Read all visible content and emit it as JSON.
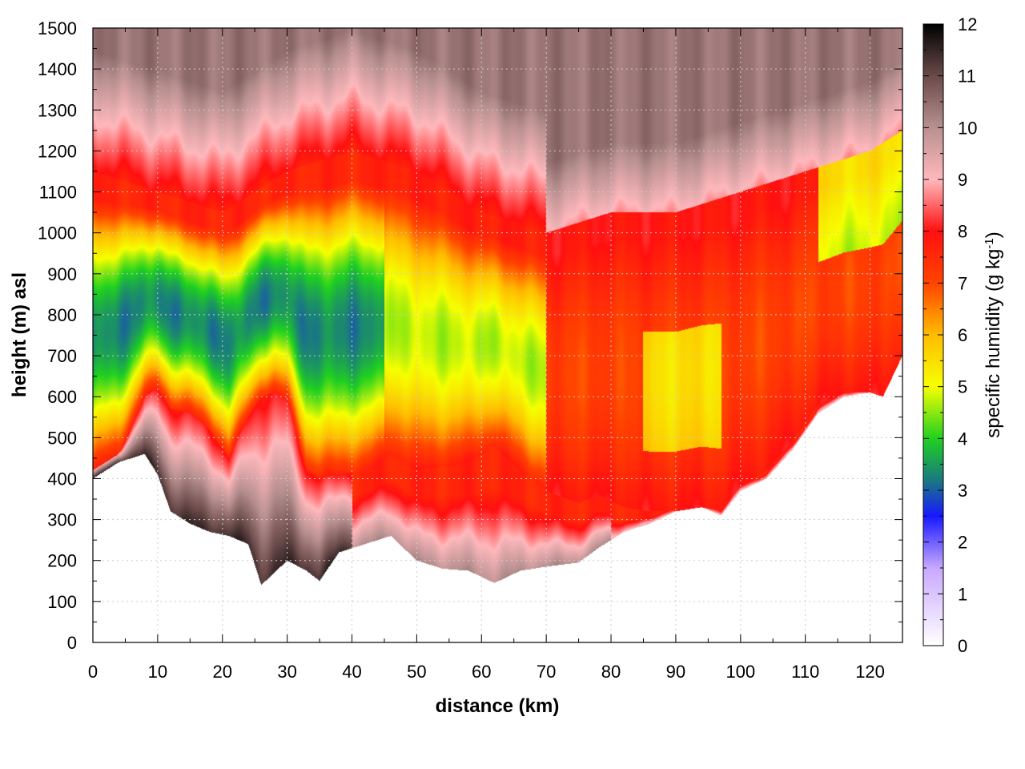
{
  "chart_data": {
    "type": "heatmap",
    "title": "",
    "xlabel": "distance (km)",
    "ylabel": "height (m) asl",
    "xlim": [
      0,
      125
    ],
    "ylim": [
      0,
      1500
    ],
    "xticks": [
      0,
      10,
      20,
      30,
      40,
      50,
      60,
      70,
      80,
      90,
      100,
      110,
      120
    ],
    "yticks": [
      0,
      100,
      200,
      300,
      400,
      500,
      600,
      700,
      800,
      900,
      1000,
      1100,
      1200,
      1300,
      1400,
      1500
    ],
    "grid": true,
    "colorbar": {
      "label_main": "specific humidity (g kg",
      "label_sup": "-1",
      "label_end": ")",
      "range": [
        0,
        12
      ],
      "ticks": [
        0,
        1,
        2,
        3,
        4,
        5,
        6,
        7,
        8,
        9,
        10,
        11,
        12
      ],
      "colors": [
        {
          "v": 0,
          "c": "#ffffff"
        },
        {
          "v": 1.5,
          "c": "#c8a8ff"
        },
        {
          "v": 2.5,
          "c": "#1818ff"
        },
        {
          "v": 3.2,
          "c": "#1a7a80"
        },
        {
          "v": 4.0,
          "c": "#20d020"
        },
        {
          "v": 5.0,
          "c": "#f6ff00"
        },
        {
          "v": 6.0,
          "c": "#ffbc00"
        },
        {
          "v": 7.0,
          "c": "#ff4400"
        },
        {
          "v": 8.0,
          "c": "#ff1010"
        },
        {
          "v": 9.0,
          "c": "#ffb8bc"
        },
        {
          "v": 10.0,
          "c": "#b89090"
        },
        {
          "v": 11.0,
          "c": "#6a4a4a"
        },
        {
          "v": 12.0,
          "c": "#000000"
        }
      ]
    },
    "field": {
      "surface_km": [
        0,
        4,
        8,
        10,
        12,
        15,
        18,
        21,
        24,
        26,
        28,
        30,
        33,
        35,
        38,
        42,
        46,
        50,
        54,
        58,
        62,
        66,
        70,
        75,
        78,
        82,
        86,
        90,
        94,
        97,
        100,
        104,
        108,
        112,
        116,
        120,
        122,
        125
      ],
      "surface_m": [
        400,
        440,
        460,
        410,
        320,
        290,
        270,
        260,
        240,
        140,
        170,
        200,
        175,
        150,
        220,
        240,
        260,
        200,
        180,
        175,
        145,
        175,
        185,
        195,
        230,
        270,
        290,
        320,
        330,
        310,
        370,
        400,
        470,
        560,
        600,
        610,
        600,
        700
      ],
      "inversion_km": [
        0,
        4,
        8,
        10,
        12,
        15,
        18,
        21,
        24,
        26,
        28,
        30,
        33,
        35,
        38,
        42,
        46,
        50,
        54,
        58,
        62,
        66,
        70,
        75,
        78,
        82,
        86,
        90,
        94,
        97,
        100,
        104,
        108,
        112,
        116,
        120,
        122,
        125
      ],
      "inversion_m": [
        420,
        460,
        600,
        620,
        570,
        560,
        520,
        450,
        550,
        600,
        610,
        590,
        420,
        400,
        410,
        420,
        460,
        420,
        430,
        440,
        480,
        420,
        370,
        340,
        360,
        330,
        320,
        320,
        330,
        320,
        380,
        420,
        490,
        580,
        610,
        610,
        600,
        700
      ],
      "moist_core_km": [
        0,
        10,
        20,
        30,
        40,
        50,
        60,
        70,
        80,
        90,
        100,
        110,
        120,
        125
      ],
      "moist_core_m": [
        1150,
        1100,
        1050,
        1150,
        1200,
        1150,
        1050,
        1000,
        1050,
        1050,
        1100,
        1150,
        1200,
        1250
      ]
    }
  }
}
